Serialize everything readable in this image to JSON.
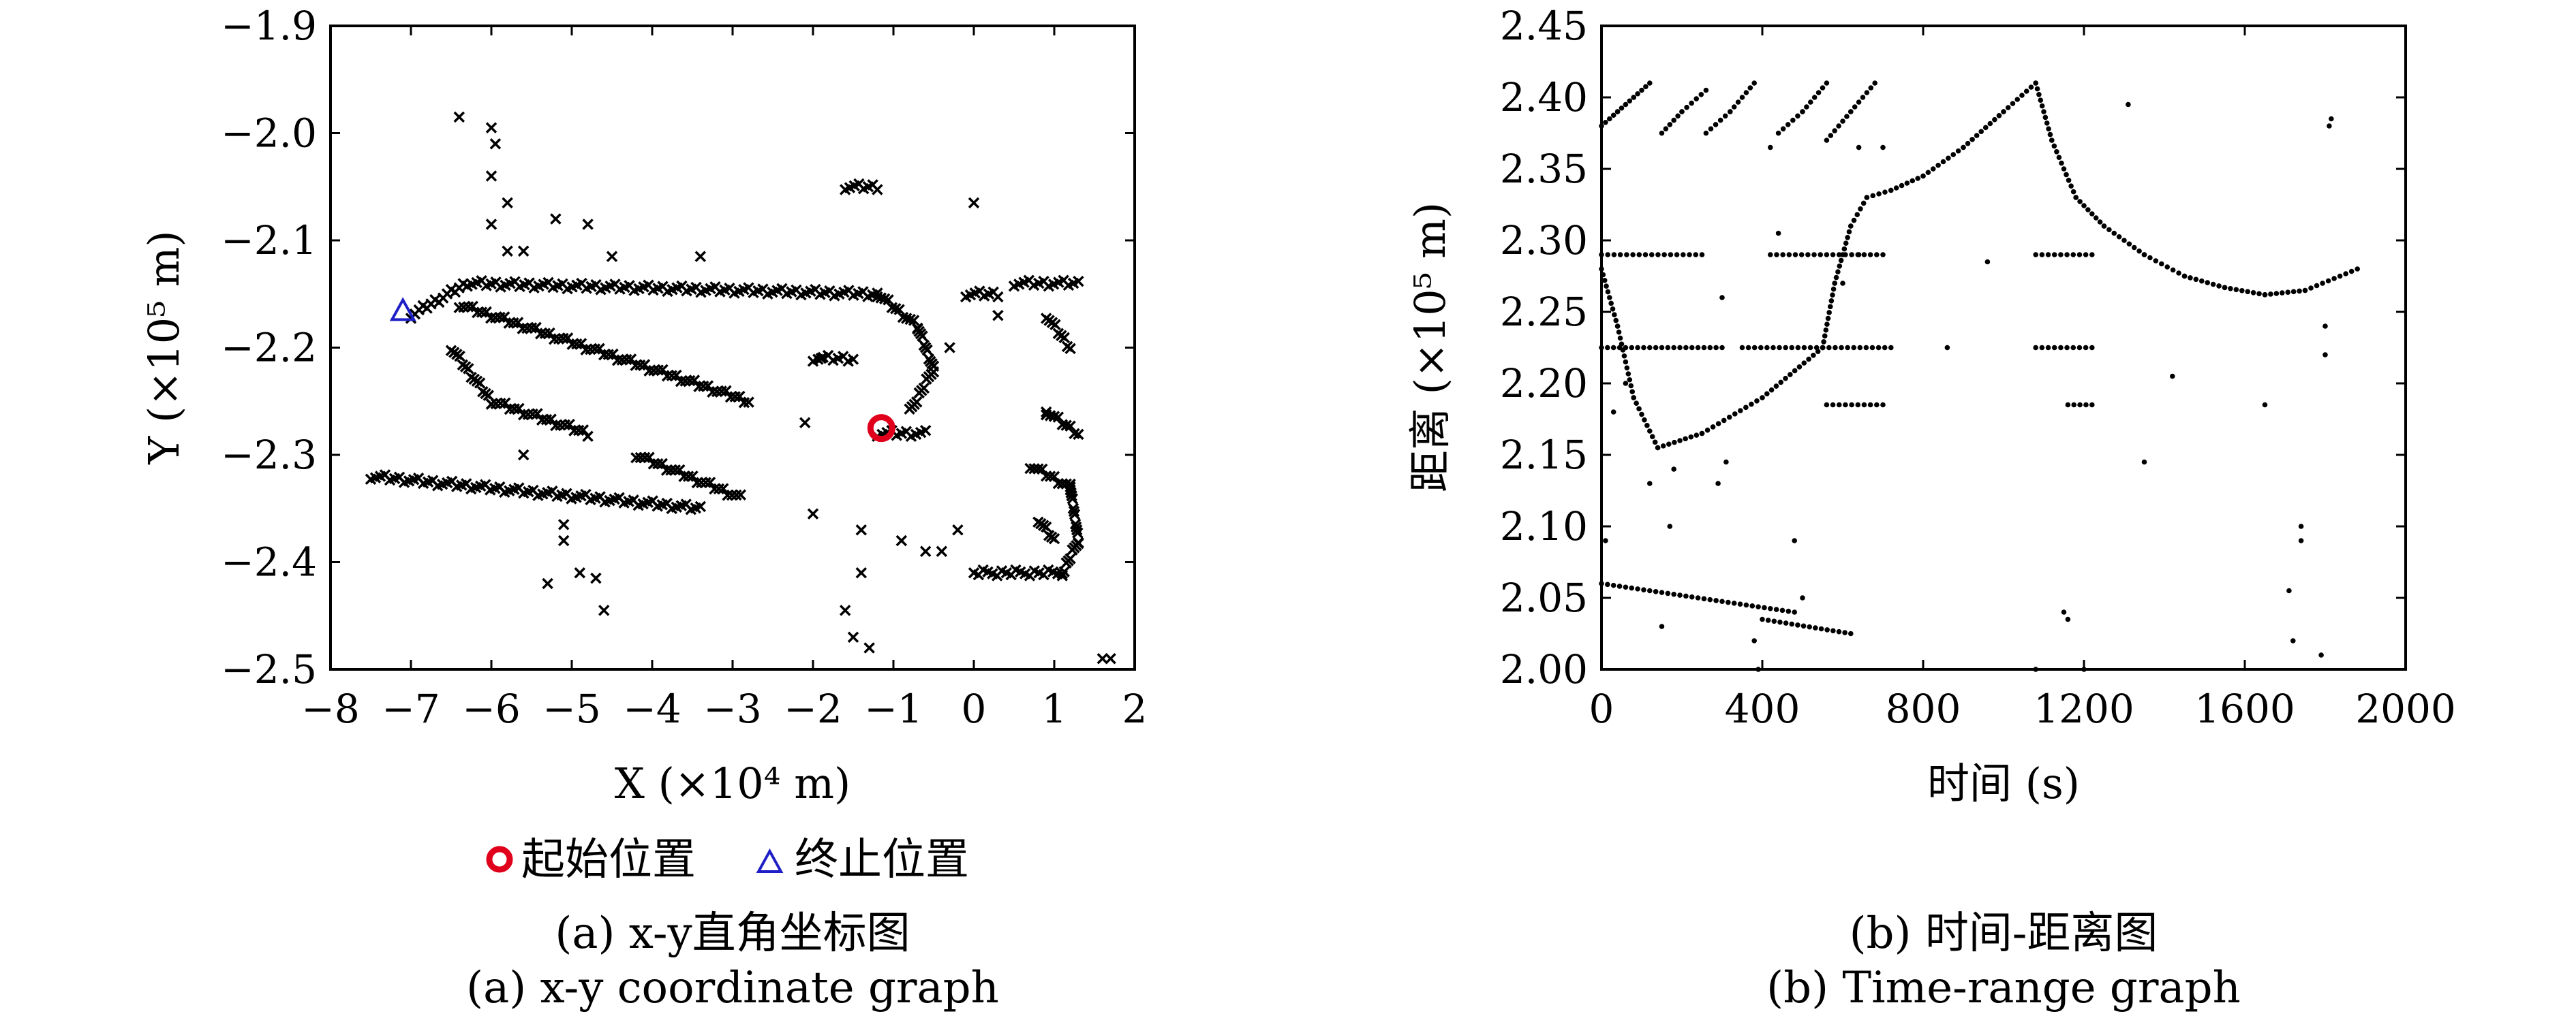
{
  "figure": {
    "captions": [
      {
        "zh": "(a) x-y直角坐标图",
        "en": "(a) x-y coordinate graph"
      },
      {
        "zh": "(b) 时间-距离图",
        "en": "(b) Time-range graph"
      }
    ]
  },
  "chart_data": [
    {
      "type": "scatter",
      "xlabel": "X (×10⁴ m)",
      "ylabel": "Y (×10⁵ m)",
      "xlim": [
        -8,
        2
      ],
      "ylim": [
        -2.5,
        -1.9
      ],
      "xticks": [
        "−8",
        "−7",
        "−6",
        "−5",
        "−4",
        "−3",
        "−2",
        "−1",
        "0",
        "1",
        "2"
      ],
      "yticks": [
        "−2.5",
        "−2.4",
        "−2.3",
        "−2.2",
        "−2.1",
        "−2.0",
        "−1.9"
      ],
      "grid": false,
      "legend": {
        "placement": "bottom",
        "entries": [
          "起始位置",
          "终止位置"
        ]
      },
      "marker_color": "#000000",
      "start_color": "#e0001b",
      "end_color": "#1f1fc8",
      "start": {
        "x": -1.15,
        "y": -2.275
      },
      "end": {
        "x": -7.1,
        "y": -2.165
      },
      "tracks": [
        {
          "from": [
            -7.0,
            -2.17
          ],
          "to": [
            -6.3,
            -2.14
          ]
        },
        {
          "from": [
            -6.3,
            -2.14
          ],
          "to": [
            -1.2,
            -2.15
          ]
        },
        {
          "from": [
            -1.2,
            -2.15
          ],
          "to": [
            -0.7,
            -2.18
          ]
        },
        {
          "from": [
            -0.7,
            -2.18
          ],
          "to": [
            -0.5,
            -2.22
          ]
        },
        {
          "from": [
            -0.5,
            -2.22
          ],
          "to": [
            -0.8,
            -2.26
          ]
        },
        {
          "from": [
            -6.4,
            -2.16
          ],
          "to": [
            -2.8,
            -2.25
          ]
        },
        {
          "from": [
            -6.5,
            -2.2
          ],
          "to": [
            -6.0,
            -2.25
          ]
        },
        {
          "from": [
            -6.0,
            -2.25
          ],
          "to": [
            -4.8,
            -2.28
          ]
        },
        {
          "from": [
            -4.2,
            -2.3
          ],
          "to": [
            -2.9,
            -2.34
          ]
        },
        {
          "from": [
            -7.5,
            -2.32
          ],
          "to": [
            -3.4,
            -2.35
          ]
        },
        {
          "from": [
            -1.6,
            -2.05
          ],
          "to": [
            -1.2,
            -2.05
          ]
        },
        {
          "from": [
            -2.0,
            -2.21
          ],
          "to": [
            -1.5,
            -2.21
          ]
        },
        {
          "from": [
            -1.2,
            -2.28
          ],
          "to": [
            -0.6,
            -2.28
          ]
        },
        {
          "from": [
            -0.1,
            -2.15
          ],
          "to": [
            0.3,
            -2.15
          ]
        },
        {
          "from": [
            0.5,
            -2.14
          ],
          "to": [
            1.3,
            -2.14
          ]
        },
        {
          "from": [
            0.9,
            -2.17
          ],
          "to": [
            1.2,
            -2.2
          ]
        },
        {
          "from": [
            0.7,
            -2.31
          ],
          "to": [
            1.2,
            -2.33
          ]
        },
        {
          "from": [
            1.2,
            -2.33
          ],
          "to": [
            1.3,
            -2.38
          ]
        },
        {
          "from": [
            1.3,
            -2.38
          ],
          "to": [
            1.1,
            -2.41
          ]
        },
        {
          "from": [
            1.1,
            -2.41
          ],
          "to": [
            0.0,
            -2.41
          ]
        },
        {
          "from": [
            0.8,
            -2.36
          ],
          "to": [
            1.0,
            -2.38
          ]
        },
        {
          "from": [
            0.9,
            -2.26
          ],
          "to": [
            1.3,
            -2.28
          ]
        }
      ],
      "points": [
        [
          -6.4,
          -1.985
        ],
        [
          -6.0,
          -1.995
        ],
        [
          -5.95,
          -2.01
        ],
        [
          -6.0,
          -2.04
        ],
        [
          -5.8,
          -2.065
        ],
        [
          -6.0,
          -2.085
        ],
        [
          -5.8,
          -2.11
        ],
        [
          -5.6,
          -2.11
        ],
        [
          -5.2,
          -2.08
        ],
        [
          -4.8,
          -2.085
        ],
        [
          -4.5,
          -2.115
        ],
        [
          -3.4,
          -2.115
        ],
        [
          -5.1,
          -2.365
        ],
        [
          -5.1,
          -2.38
        ],
        [
          -4.9,
          -2.41
        ],
        [
          -4.7,
          -2.415
        ],
        [
          -4.6,
          -2.445
        ],
        [
          -5.3,
          -2.42
        ],
        [
          -5.6,
          -2.3
        ],
        [
          -2.0,
          -2.355
        ],
        [
          -1.4,
          -2.41
        ],
        [
          -1.4,
          -2.37
        ],
        [
          -1.6,
          -2.445
        ],
        [
          -1.5,
          -2.47
        ],
        [
          -1.3,
          -2.48
        ],
        [
          -0.9,
          -2.38
        ],
        [
          -0.6,
          -2.39
        ],
        [
          -0.4,
          -2.39
        ],
        [
          -0.2,
          -2.37
        ],
        [
          0.0,
          -2.065
        ],
        [
          0.9,
          -2.26
        ],
        [
          1.7,
          -2.49
        ],
        [
          1.6,
          -2.49
        ],
        [
          1.2,
          -2.33
        ],
        [
          -2.1,
          -2.27
        ],
        [
          -1.9,
          -2.21
        ],
        [
          -0.3,
          -2.2
        ],
        [
          0.3,
          -2.17
        ]
      ]
    },
    {
      "type": "scatter",
      "xlabel": "时间 (s)",
      "ylabel": "距离 (×10⁵ m)",
      "xlim": [
        0,
        2000
      ],
      "ylim": [
        2.0,
        2.45
      ],
      "xticks": [
        "0",
        "400",
        "800",
        "1200",
        "1600",
        "2000"
      ],
      "yticks": [
        "2.00",
        "2.05",
        "2.10",
        "2.15",
        "2.20",
        "2.25",
        "2.30",
        "2.35",
        "2.40",
        "2.45"
      ],
      "grid": false,
      "marker_color": "#000000",
      "curves": [
        {
          "x": [
            0,
            40,
            80,
            120
          ],
          "y": [
            2.38,
            2.39,
            2.4,
            2.41
          ]
        },
        {
          "x": [
            150,
            200,
            260
          ],
          "y": [
            2.375,
            2.39,
            2.405
          ]
        },
        {
          "x": [
            260,
            320,
            380
          ],
          "y": [
            2.375,
            2.39,
            2.41
          ]
        },
        {
          "x": [
            440,
            500,
            560
          ],
          "y": [
            2.375,
            2.39,
            2.41
          ]
        },
        {
          "x": [
            560,
            620,
            680
          ],
          "y": [
            2.37,
            2.39,
            2.41
          ]
        },
        {
          "x": [
            0,
            40,
            80,
            140
          ],
          "y": [
            2.28,
            2.24,
            2.19,
            2.155
          ]
        },
        {
          "x": [
            140,
            250,
            400,
            550
          ],
          "y": [
            2.155,
            2.165,
            2.19,
            2.225
          ]
        },
        {
          "x": [
            550,
            580,
            620,
            660,
            720,
            800,
            900,
            1000,
            1080
          ],
          "y": [
            2.225,
            2.27,
            2.31,
            2.33,
            2.335,
            2.345,
            2.365,
            2.39,
            2.41
          ]
        },
        {
          "x": [
            1080,
            1120,
            1180,
            1250,
            1350,
            1450,
            1550,
            1650,
            1750,
            1880
          ],
          "y": [
            2.41,
            2.37,
            2.33,
            2.31,
            2.29,
            2.275,
            2.267,
            2.262,
            2.265,
            2.28
          ]
        },
        {
          "x": [
            0,
            250
          ],
          "y": [
            2.29,
            2.29
          ]
        },
        {
          "x": [
            420,
            700
          ],
          "y": [
            2.29,
            2.29
          ]
        },
        {
          "x": [
            1080,
            1220
          ],
          "y": [
            2.29,
            2.29
          ]
        },
        {
          "x": [
            0,
            300
          ],
          "y": [
            2.225,
            2.225
          ]
        },
        {
          "x": [
            350,
            720
          ],
          "y": [
            2.225,
            2.225
          ]
        },
        {
          "x": [
            1080,
            1220
          ],
          "y": [
            2.225,
            2.225
          ]
        },
        {
          "x": [
            0,
            480
          ],
          "y": [
            2.06,
            2.04
          ]
        },
        {
          "x": [
            400,
            620
          ],
          "y": [
            2.035,
            2.025
          ]
        },
        {
          "x": [
            560,
            700
          ],
          "y": [
            2.185,
            2.185
          ]
        },
        {
          "x": [
            1160,
            1220
          ],
          "y": [
            2.185,
            2.185
          ]
        }
      ],
      "points": [
        [
          10,
          2.09
        ],
        [
          30,
          2.18
        ],
        [
          60,
          2.2
        ],
        [
          120,
          2.13
        ],
        [
          150,
          2.03
        ],
        [
          180,
          2.14
        ],
        [
          170,
          2.1
        ],
        [
          290,
          2.13
        ],
        [
          310,
          2.145
        ],
        [
          300,
          2.26
        ],
        [
          380,
          2.02
        ],
        [
          390,
          2.0
        ],
        [
          420,
          2.365
        ],
        [
          440,
          2.305
        ],
        [
          480,
          2.09
        ],
        [
          500,
          2.05
        ],
        [
          640,
          2.365
        ],
        [
          700,
          2.365
        ],
        [
          860,
          2.225
        ],
        [
          960,
          2.285
        ],
        [
          1080,
          2.0
        ],
        [
          1150,
          2.04
        ],
        [
          1160,
          2.035
        ],
        [
          1200,
          2.0
        ],
        [
          1310,
          2.395
        ],
        [
          1350,
          2.145
        ],
        [
          1420,
          2.205
        ],
        [
          1650,
          2.185
        ],
        [
          1710,
          2.055
        ],
        [
          1720,
          2.02
        ],
        [
          1740,
          2.09
        ],
        [
          1740,
          2.1
        ],
        [
          1790,
          2.01
        ],
        [
          1800,
          2.22
        ],
        [
          1800,
          2.24
        ],
        [
          1810,
          2.38
        ],
        [
          1815,
          2.385
        ],
        [
          640,
          2.29
        ],
        [
          600,
          2.27
        ]
      ]
    }
  ]
}
